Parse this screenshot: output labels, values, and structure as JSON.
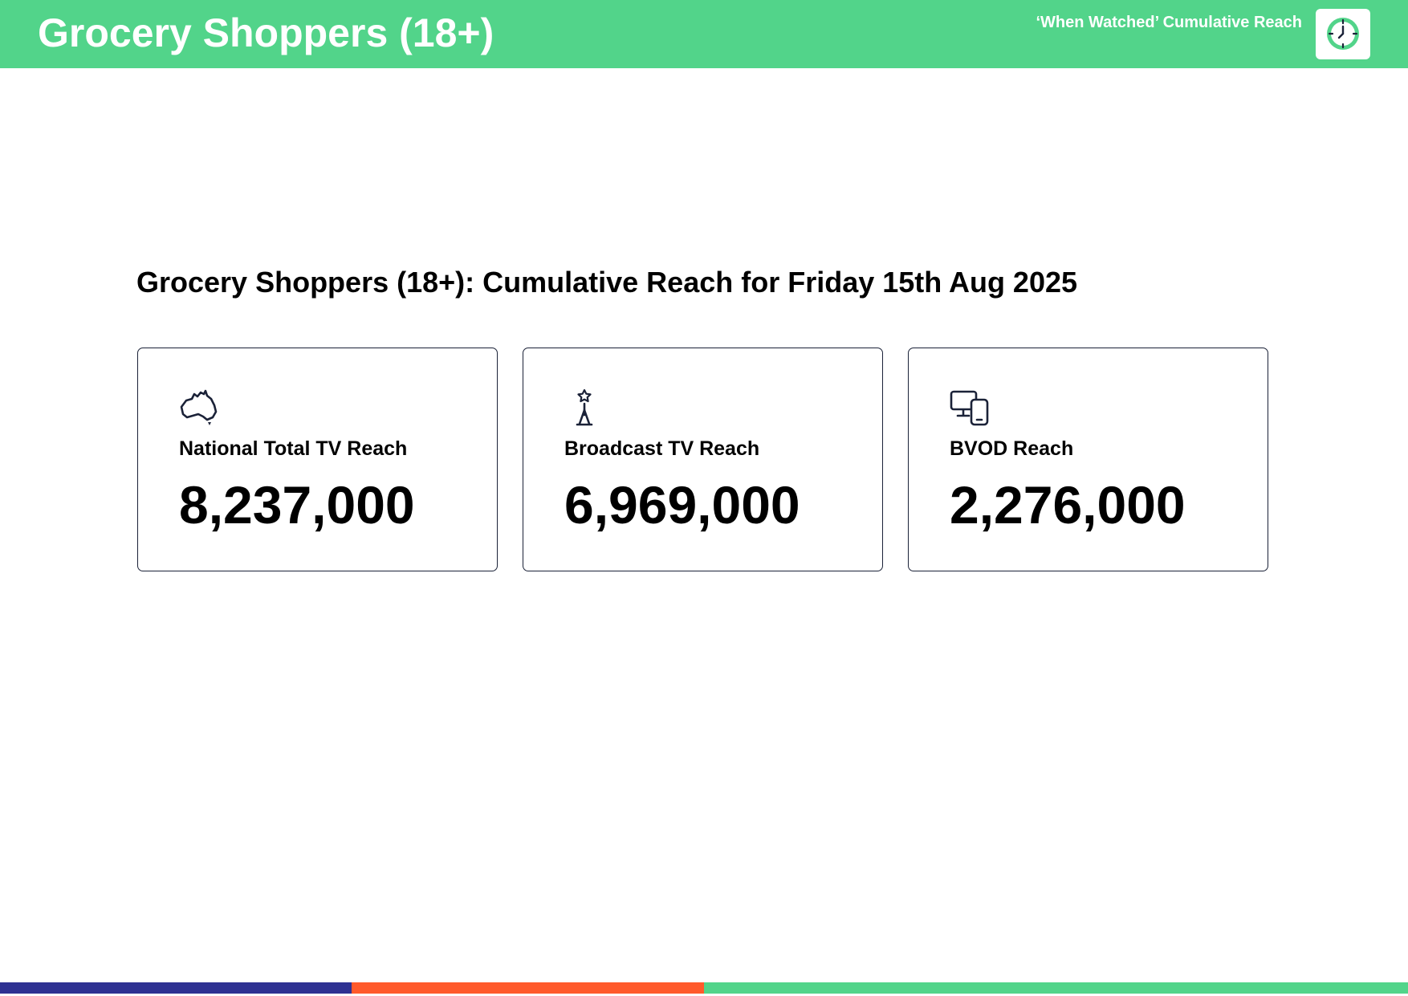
{
  "header": {
    "title": "Grocery Shoppers (18+)",
    "subtitle": "‘When Watched’ Cumulative Reach",
    "badge_icon": "clock-icon",
    "background_color": "#52D48A"
  },
  "main": {
    "section_title": "Grocery Shoppers (18+): Cumulative Reach for Friday 15th Aug 2025",
    "cards": [
      {
        "icon": "australia-map-icon",
        "label": "National Total TV Reach",
        "value": "8,237,000"
      },
      {
        "icon": "broadcast-tower-icon",
        "label": "Broadcast TV Reach",
        "value": "6,969,000"
      },
      {
        "icon": "devices-icon",
        "label": "BVOD Reach",
        "value": "2,276,000"
      }
    ]
  },
  "footer": {
    "segment_colors": [
      "#2E3192",
      "#FF5A2B",
      "#52D48A"
    ]
  }
}
